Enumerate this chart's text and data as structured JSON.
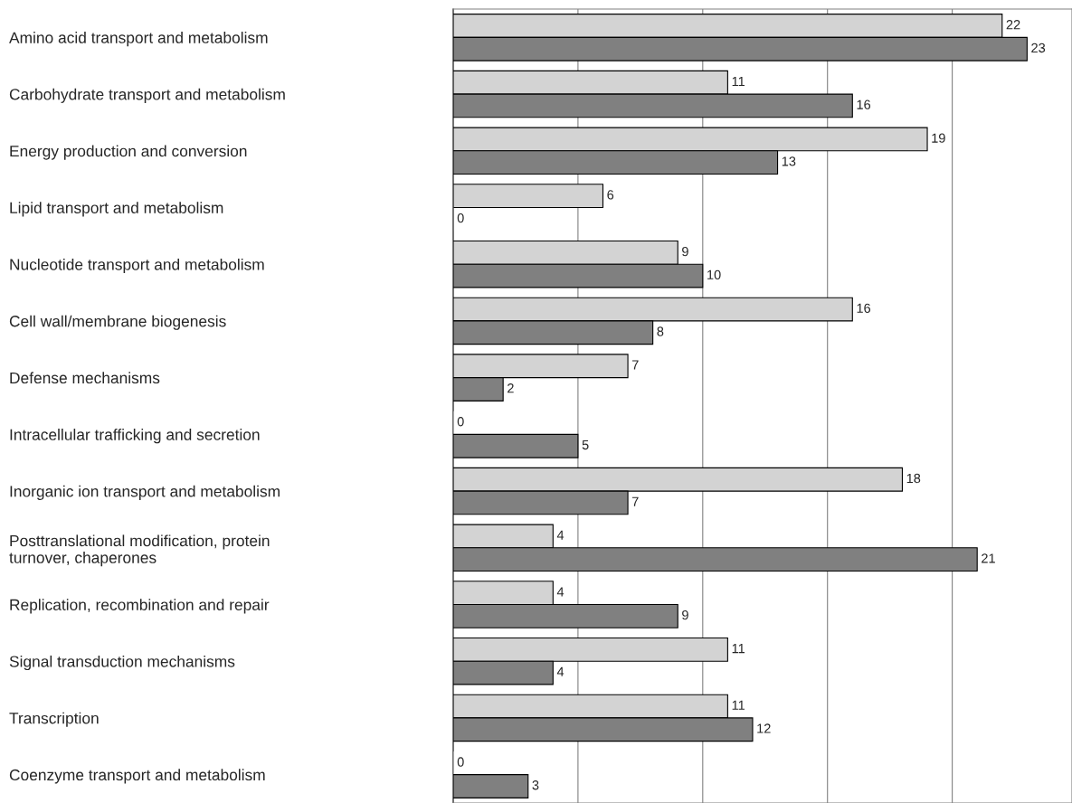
{
  "chart_data": {
    "type": "bar",
    "orientation": "horizontal",
    "relative": false,
    "categories": [
      "Amino acid transport and metabolism",
      "Carbohydrate transport and metabolism",
      "Energy production and conversion",
      "Lipid transport and metabolism",
      "Nucleotide transport and metabolism",
      "Cell wall/membrane biogenesis",
      "Defense mechanisms",
      "Intracellular trafficking and secretion",
      "Inorganic ion transport and metabolism",
      "Posttranslational modification, protein\nturnover, chaperones",
      "Replication, recombination and repair",
      "Signal transduction mechanisms",
      "Transcription",
      "Coenzyme transport and metabolism"
    ],
    "series": [
      {
        "color": "#d3d3d3",
        "values": [
          22,
          11,
          19,
          6,
          9,
          16,
          7,
          0,
          18,
          4,
          4,
          11,
          11,
          0
        ]
      },
      {
        "color": "#808080",
        "values": [
          23,
          16,
          13,
          0,
          10,
          8,
          2,
          5,
          7,
          21,
          9,
          4,
          12,
          3
        ]
      }
    ],
    "xlim": [
      0,
      24.8
    ],
    "xticks": [
      {
        "value": 5,
        "label": null
      },
      {
        "value": 10,
        "label": null
      },
      {
        "value": 15,
        "label": null
      },
      {
        "value": 20,
        "label": null
      }
    ],
    "grid": "x",
    "data_labels": true,
    "tick_labels": "y",
    "legend": false
  }
}
